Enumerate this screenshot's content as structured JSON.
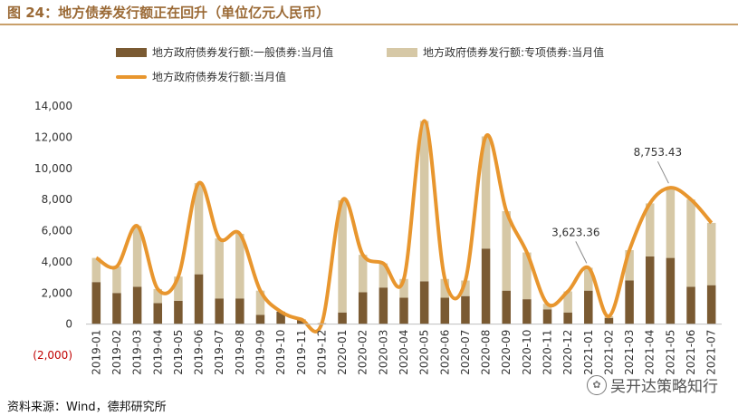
{
  "title": "图 24：地方债券发行额正在回升（单位亿元人民币）",
  "source": "资料来源：Wind，德邦研究所",
  "watermark": "吴开达策略知行",
  "watermark_icon": "wechat-icon",
  "colors": {
    "general": "#7a5a32",
    "special": "#d6c8a6",
    "total": "#e8962e",
    "title": "#9b6a36",
    "negative_tick": "#c00000"
  },
  "chart_data": {
    "type": "bar",
    "stacked": true,
    "categories": [
      "2019-01",
      "2019-02",
      "2019-03",
      "2019-04",
      "2019-05",
      "2019-06",
      "2019-07",
      "2019-08",
      "2019-09",
      "2019-10",
      "2019-11",
      "2019-12",
      "2020-01",
      "2020-02",
      "2020-03",
      "2020-04",
      "2020-05",
      "2020-06",
      "2020-07",
      "2020-08",
      "2020-09",
      "2020-10",
      "2020-11",
      "2020-12",
      "2021-01",
      "2021-02",
      "2021-03",
      "2021-04",
      "2021-05",
      "2021-06",
      "2021-07"
    ],
    "series": [
      {
        "name": "地方政府债券发行额:一般债券:当月值",
        "type": "bar",
        "values": [
          2700,
          2000,
          2400,
          1350,
          1500,
          3200,
          1650,
          1650,
          600,
          800,
          300,
          50,
          750,
          2050,
          2350,
          1700,
          2750,
          1700,
          1800,
          4850,
          2150,
          1600,
          950,
          750,
          2150,
          400,
          2800,
          4350,
          4250,
          2400,
          2500
        ]
      },
      {
        "name": "地方政府债券发行额:专项债券:当月值",
        "type": "bar",
        "values": [
          1550,
          1700,
          3900,
          900,
          1550,
          5850,
          3850,
          4150,
          1550,
          0,
          0,
          0,
          7200,
          2400,
          1550,
          1200,
          10300,
          1200,
          1000,
          7200,
          5100,
          3000,
          350,
          1350,
          1470,
          100,
          1950,
          3400,
          4500,
          5600,
          4000
        ]
      },
      {
        "name": "地方政府债券发行额:当月值",
        "type": "line",
        "values": [
          4250,
          3700,
          6300,
          2250,
          3050,
          9050,
          5500,
          5800,
          2150,
          800,
          300,
          50,
          7950,
          4450,
          3900,
          2900,
          13050,
          2900,
          2800,
          12050,
          7250,
          4600,
          1300,
          2100,
          3623.36,
          500,
          4750,
          7750,
          8753.43,
          8000,
          6500
        ]
      }
    ],
    "ylim": [
      -2000,
      14000
    ],
    "yticks": [
      -2000,
      0,
      2000,
      4000,
      6000,
      8000,
      10000,
      12000,
      14000
    ],
    "ytick_labels": [
      "(2,000)",
      "0",
      "2,000",
      "4,000",
      "6,000",
      "8,000",
      "10,000",
      "12,000",
      "14,000"
    ],
    "annotations": [
      {
        "category": "2021-01",
        "value": 3623.36,
        "label": "3,623.36"
      },
      {
        "category": "2021-05",
        "value": 8753.43,
        "label": "8,753.43"
      }
    ],
    "grid": false,
    "legend_position": "top"
  }
}
